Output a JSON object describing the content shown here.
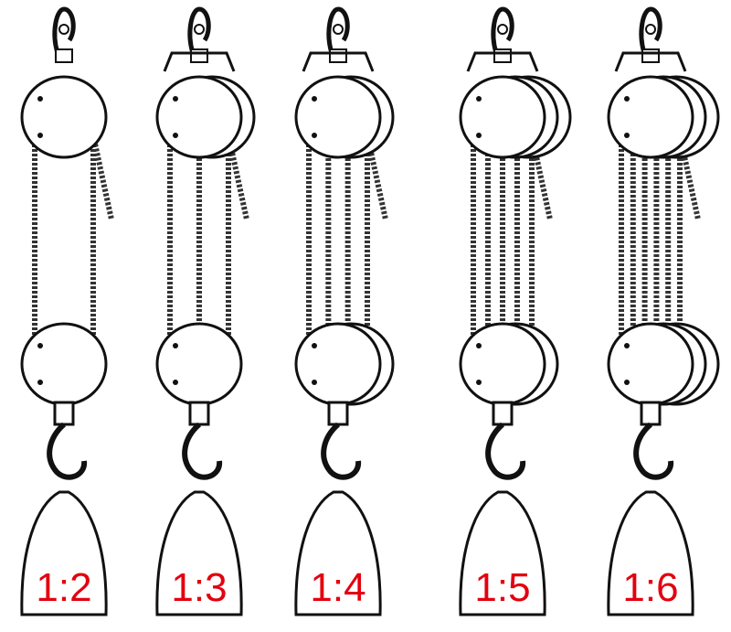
{
  "colors": {
    "ink": "#111111",
    "rope": "#333333",
    "label": "#e3000f",
    "background": "#ffffff"
  },
  "icons": [
    "hook-icon",
    "pulley-icon",
    "rope-icon",
    "weight-icon"
  ],
  "tackles": [
    {
      "ratio": "1:2",
      "top_sheaves": 1,
      "bottom_sheaves": 1,
      "supporting_lines": 2
    },
    {
      "ratio": "1:3",
      "top_sheaves": 2,
      "bottom_sheaves": 1,
      "supporting_lines": 3
    },
    {
      "ratio": "1:4",
      "top_sheaves": 2,
      "bottom_sheaves": 2,
      "supporting_lines": 4
    },
    {
      "ratio": "1:5",
      "top_sheaves": 3,
      "bottom_sheaves": 2,
      "supporting_lines": 5
    },
    {
      "ratio": "1:6",
      "top_sheaves": 3,
      "bottom_sheaves": 3,
      "supporting_lines": 6
    }
  ]
}
